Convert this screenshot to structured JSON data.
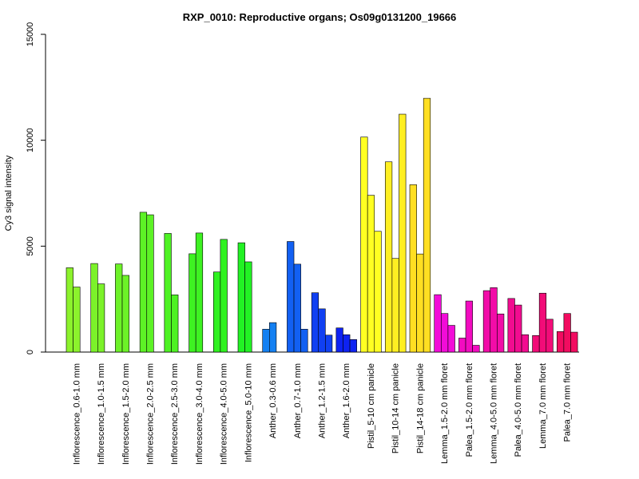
{
  "chart_data": {
    "type": "bar",
    "title": "RXP_0010: Reproductive organs; Os09g0131200_19666",
    "xlabel": "",
    "ylabel": "Cy3 signal intensity",
    "ylim": [
      0,
      15000
    ],
    "yticks": [
      0,
      5000,
      10000,
      15000
    ],
    "grid": false,
    "groups": [
      {
        "label": "Inflorescence_0.6-1.0 mm",
        "color": "#8cf22c",
        "values": [
          3980,
          3070
        ]
      },
      {
        "label": "Inflorescence_1.0-1.5 mm",
        "color": "#7cf22a",
        "values": [
          4180,
          3220
        ]
      },
      {
        "label": "Inflorescence_1.5-2.0 mm",
        "color": "#6df228",
        "values": [
          4160,
          3620
        ]
      },
      {
        "label": "Inflorescence_2.0-2.5 mm",
        "color": "#5df226",
        "values": [
          6600,
          6480
        ]
      },
      {
        "label": "Inflorescence_2.5-3.0 mm",
        "color": "#4ef224",
        "values": [
          5600,
          2700
        ]
      },
      {
        "label": "Inflorescence_3.0-4.0 mm",
        "color": "#3ef222",
        "values": [
          4640,
          5620
        ]
      },
      {
        "label": "Inflorescence_4.0-5.0 mm",
        "color": "#2ff220",
        "values": [
          3780,
          5320
        ]
      },
      {
        "label": "Inflorescence_5.0-10 mm",
        "color": "#22f224",
        "values": [
          5160,
          4260
        ]
      },
      {
        "label": "Anther_0.3-0.6 mm",
        "color": "#1480f2",
        "values": [
          1080,
          1390
        ]
      },
      {
        "label": "Anther_0.7-1.0 mm",
        "color": "#1260f2",
        "values": [
          5220,
          4150,
          1080
        ]
      },
      {
        "label": "Anther_1.2-1.5 mm",
        "color": "#1040f2",
        "values": [
          2800,
          2040,
          800
        ]
      },
      {
        "label": "Anther_1.6-2.0 mm",
        "color": "#0e22f2",
        "values": [
          1140,
          820,
          590
        ]
      },
      {
        "label": "Pistil_5-10 cm panicle",
        "color": "#ffff22",
        "values": [
          10150,
          7400,
          5700
        ]
      },
      {
        "label": "Pistil_10-14 cm panicle",
        "color": "#ffef22",
        "values": [
          8980,
          4420,
          11230
        ]
      },
      {
        "label": "Pistil_14-18 cm panicle",
        "color": "#ffdf22",
        "values": [
          7900,
          4630,
          11980
        ]
      },
      {
        "label": "Lemma_1.5-2.0 mm floret",
        "color": "#f20cd8",
        "values": [
          2710,
          1820,
          1260
        ]
      },
      {
        "label": "Palea_1.5-2.0 mm floret",
        "color": "#f20cc0",
        "values": [
          660,
          2410,
          320
        ]
      },
      {
        "label": "Lemma_4.0-5.0 mm floret",
        "color": "#f20ca8",
        "values": [
          2900,
          3040,
          1800
        ]
      },
      {
        "label": "Palea_4.0-5.0 mm floret",
        "color": "#f20c90",
        "values": [
          2530,
          2220,
          820
        ]
      },
      {
        "label": "Lemma_7.0 mm floret",
        "color": "#f20c78",
        "values": [
          780,
          2780,
          1550
        ]
      },
      {
        "label": "Palea_7.0 mm floret",
        "color": "#f20c60",
        "values": [
          970,
          1820,
          940
        ]
      }
    ]
  }
}
